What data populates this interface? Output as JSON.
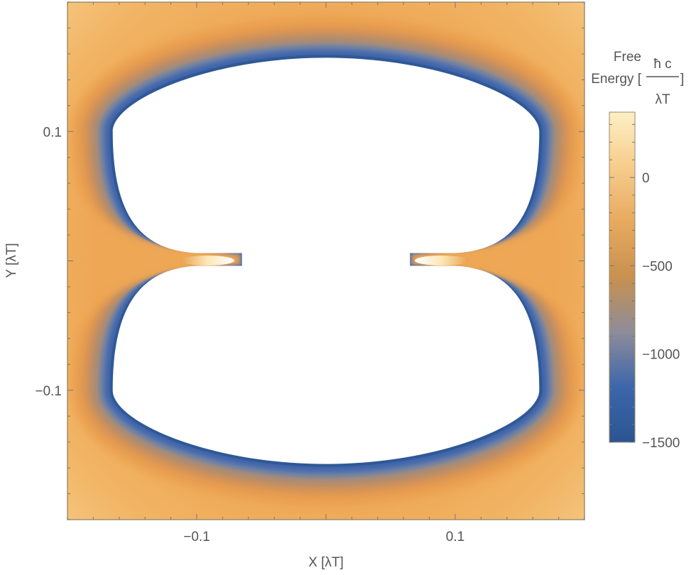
{
  "chart_data": {
    "type": "heatmap",
    "title": "",
    "xlabel": "X [λT]",
    "ylabel": "Y [λT]",
    "xlim": [
      -0.2,
      0.2
    ],
    "ylim": [
      -0.2,
      0.2
    ],
    "x_ticks": [
      -0.1,
      0.1
    ],
    "y_ticks": [
      0.1,
      -0.1
    ],
    "x_tick_labels": [
      "−0.1",
      "0.1"
    ],
    "y_tick_labels": [
      "0.1",
      "−0.1"
    ],
    "colorbar": {
      "title": "Free Energy",
      "unit_numerator": "ħ c",
      "unit_denominator": "λT",
      "range": [
        -1500,
        370
      ],
      "ticks": [
        0,
        -500,
        -1000,
        -1500
      ],
      "tick_labels": [
        "0",
        "−500",
        "−1000",
        "−1500"
      ],
      "colors": [
        "#2b5591",
        "#3d66ab",
        "#8d8c9a",
        "#c8914f",
        "#e7a95f",
        "#f6cc8c",
        "#fdf0c4"
      ]
    },
    "background_color": "#f1b565",
    "excluded_region_color": "#ffffff",
    "excluded_region": {
      "shape": "two-lobed",
      "x_extent": [
        -0.165,
        0.165
      ],
      "y_extent": [
        -0.157,
        0.157
      ],
      "neck_y": 0.0
    },
    "grid": false
  }
}
